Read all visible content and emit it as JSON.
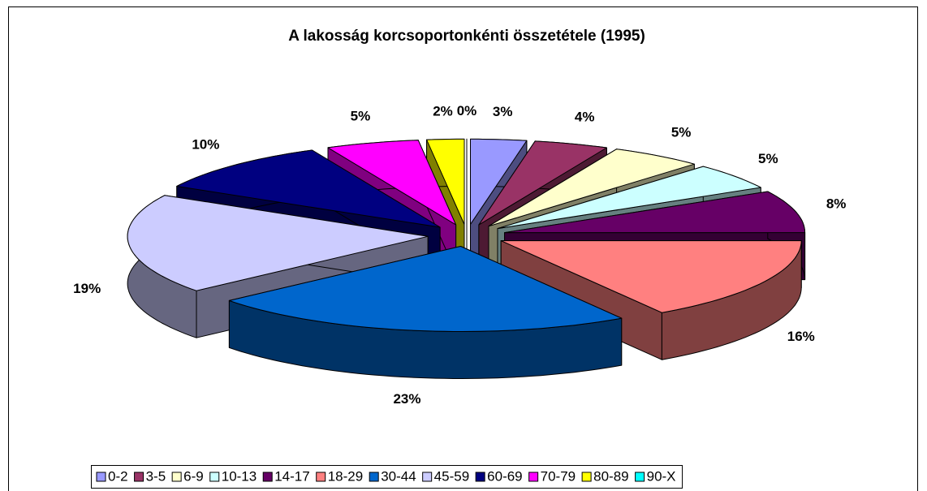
{
  "chart_data": {
    "type": "pie3d",
    "title": "A lakosság korcsoportonkénti összetétele (1995)",
    "categories": [
      "0-2",
      "3-5",
      "6-9",
      "10-13",
      "14-17",
      "18-29",
      "30-44",
      "45-59",
      "60-69",
      "70-79",
      "80-89",
      "90-X"
    ],
    "values": [
      3,
      4,
      5,
      5,
      8,
      16,
      23,
      19,
      10,
      5,
      2,
      0
    ],
    "value_labels": [
      "3%",
      "4%",
      "5%",
      "5%",
      "8%",
      "16%",
      "23%",
      "19%",
      "10%",
      "5%",
      "2%",
      "0%"
    ],
    "colors": [
      "#9999ff",
      "#993366",
      "#ffffcc",
      "#ccffff",
      "#660066",
      "#ff8080",
      "#0066cc",
      "#ccccff",
      "#000080",
      "#ff00ff",
      "#ffff00",
      "#00ffff"
    ],
    "legend": "bottom"
  }
}
